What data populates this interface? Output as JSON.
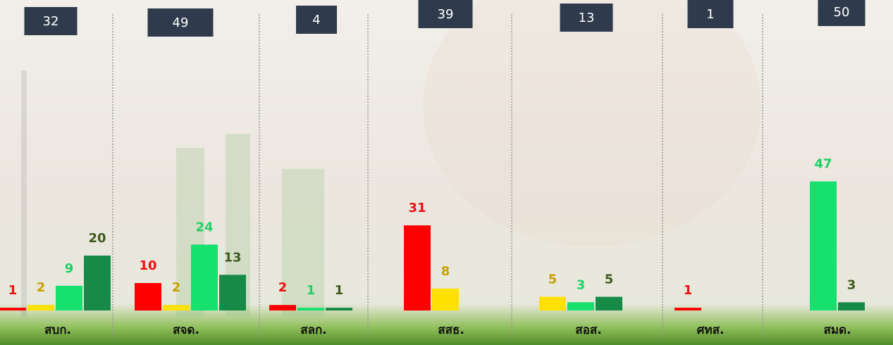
{
  "chart_data": {
    "type": "bar",
    "categories": [
      "สบก.",
      "สจด.",
      "สลก.",
      "สสธ.",
      "สอส.",
      "ศทส.",
      "สมด."
    ],
    "totals": [
      32,
      49,
      4,
      39,
      13,
      1,
      50
    ],
    "series": [
      {
        "color": "#ff0000",
        "label_color": "#ee1111",
        "values": [
          1,
          10,
          2,
          31,
          null,
          1,
          null
        ]
      },
      {
        "color": "#ffe000",
        "label_color": "#c9a100",
        "values": [
          2,
          2,
          null,
          8,
          5,
          null,
          null
        ]
      },
      {
        "color": "#16e06e",
        "label_color": "#1fd066",
        "values": [
          9,
          24,
          1,
          null,
          3,
          null,
          47
        ]
      },
      {
        "color": "#178a48",
        "label_color": "#3f5a1e",
        "values": [
          20,
          13,
          1,
          null,
          5,
          null,
          3
        ]
      }
    ]
  }
}
